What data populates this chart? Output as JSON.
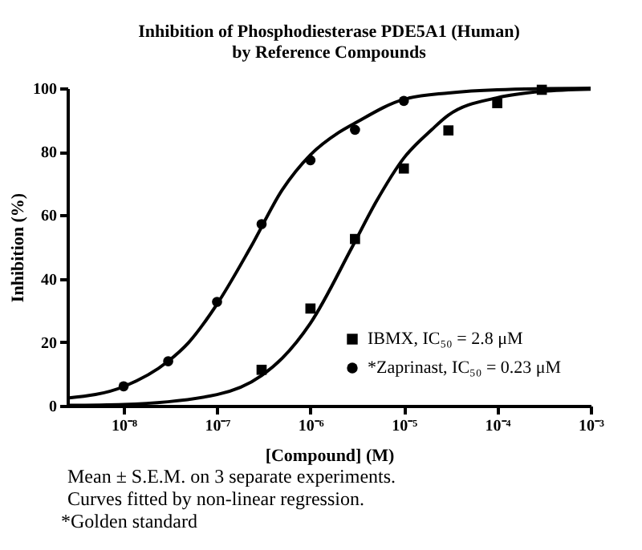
{
  "chart_data": {
    "type": "scatter",
    "title": "Inhibition of Phosphodiesterase PDE5A1 (Human)\nby Reference Compounds",
    "xlabel": "[Compound] (M)",
    "ylabel": "Inhibition (%)",
    "log": "x",
    "xlim": [
      2.5e-09,
      0.001
    ],
    "xticks": [
      {
        "value": 1e-08,
        "label": "10⁻⁸"
      },
      {
        "value": 1e-07,
        "label": "10⁻⁷"
      },
      {
        "value": 1e-06,
        "label": "10⁻⁶"
      },
      {
        "value": 1e-05,
        "label": "10⁻⁵"
      },
      {
        "value": 0.0001,
        "label": "10⁻⁴"
      },
      {
        "value": 0.001,
        "label": "10⁻³"
      }
    ],
    "ylim": [
      0,
      100
    ],
    "yticks": [
      0,
      20,
      40,
      60,
      80,
      100
    ],
    "grid": false,
    "legend": "bottom right",
    "series": [
      {
        "name": "IBMX, IC₅₀ = 2.8 μM",
        "marker": "square",
        "color": "#000000",
        "x": [
          3e-07,
          1e-06,
          3e-06,
          1e-05,
          3e-05,
          0.0001,
          0.0003
        ],
        "values": [
          11.3,
          30.6,
          52.5,
          74.7,
          86.7,
          95.3,
          99.5
        ]
      },
      {
        "name": "*Zaprinast, IC₅₀ = 0.23 μM",
        "marker": "circle",
        "color": "#000000",
        "x": [
          1e-08,
          3e-08,
          1e-07,
          3e-07,
          1e-06,
          3e-06,
          1e-05
        ],
        "values": [
          6.1,
          14.0,
          32.7,
          57.2,
          77.3,
          86.9,
          96.0
        ]
      },
      {
        "type": "line",
        "color": "#000000",
        "x": [
          2.5e-09,
          1e-08,
          1e-07,
          3e-07,
          5e-07,
          1e-06,
          2.8e-06,
          5e-06,
          1e-05,
          2e-05,
          3e-05,
          0.0001,
          0.0003,
          0.001
        ],
        "values": [
          0.1,
          0.4,
          3.5,
          9.5,
          15,
          26,
          50,
          64,
          78,
          87,
          91.5,
          97,
          99,
          99.7
        ]
      },
      {
        "type": "line",
        "color": "#000000",
        "x": [
          2.5e-09,
          1e-08,
          3e-08,
          5e-08,
          1e-07,
          2.3e-07,
          5e-07,
          1e-06,
          2e-06,
          3e-06,
          1e-05,
          3e-05,
          0.0001,
          0.001
        ],
        "values": [
          2.4,
          6,
          14,
          20,
          32,
          50,
          68,
          79,
          86,
          89,
          96.5,
          98.5,
          99.5,
          100
        ]
      }
    ],
    "annotations": [
      "Mean ± S.E.M. on 3 separate experiments.",
      "Curves fitted by non-linear regression.",
      "*Golden standard"
    ]
  }
}
